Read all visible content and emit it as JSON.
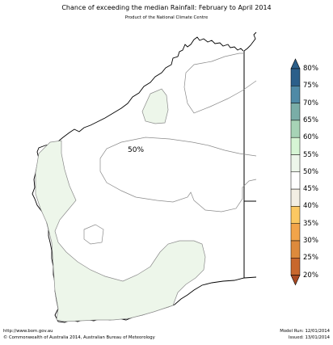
{
  "title": "Chance of exceeding the median Rainfall: February to April 2014",
  "subtitle": "Product of the National Climate Centre",
  "map_label": "50%",
  "legend": {
    "levels": [
      {
        "label": "80%",
        "color": "#2b5f8a"
      },
      {
        "label": "75%",
        "color": "#4f8aa6"
      },
      {
        "label": "70%",
        "color": "#7aada7"
      },
      {
        "label": "65%",
        "color": "#a7d3b6"
      },
      {
        "label": "60%",
        "color": "#d6f5d4"
      },
      {
        "label": "55%",
        "color": "#edf6ea"
      },
      {
        "label": "50%",
        "color": "#ffffff"
      },
      {
        "label": "45%",
        "color": "#f3eee3"
      },
      {
        "label": "40%",
        "color": "#fbc862"
      },
      {
        "label": "35%",
        "color": "#f2a44a"
      },
      {
        "label": "30%",
        "color": "#dd8a3c"
      },
      {
        "label": "25%",
        "color": "#c8672d"
      },
      {
        "label": "20%",
        "color": "#aa4a23"
      }
    ]
  },
  "footer": {
    "url": "http://www.bom.gov.au",
    "copyright": "©  Commonwealth of Australia 2014, Australian Bureau of Meteorology",
    "model_run": "Model Run: 12/01/2014",
    "issued": "Issued: 13/01/2014"
  },
  "colors": {
    "region_55": "#edf6ea",
    "coast": "#000000",
    "contour": "#8a8a8a"
  }
}
